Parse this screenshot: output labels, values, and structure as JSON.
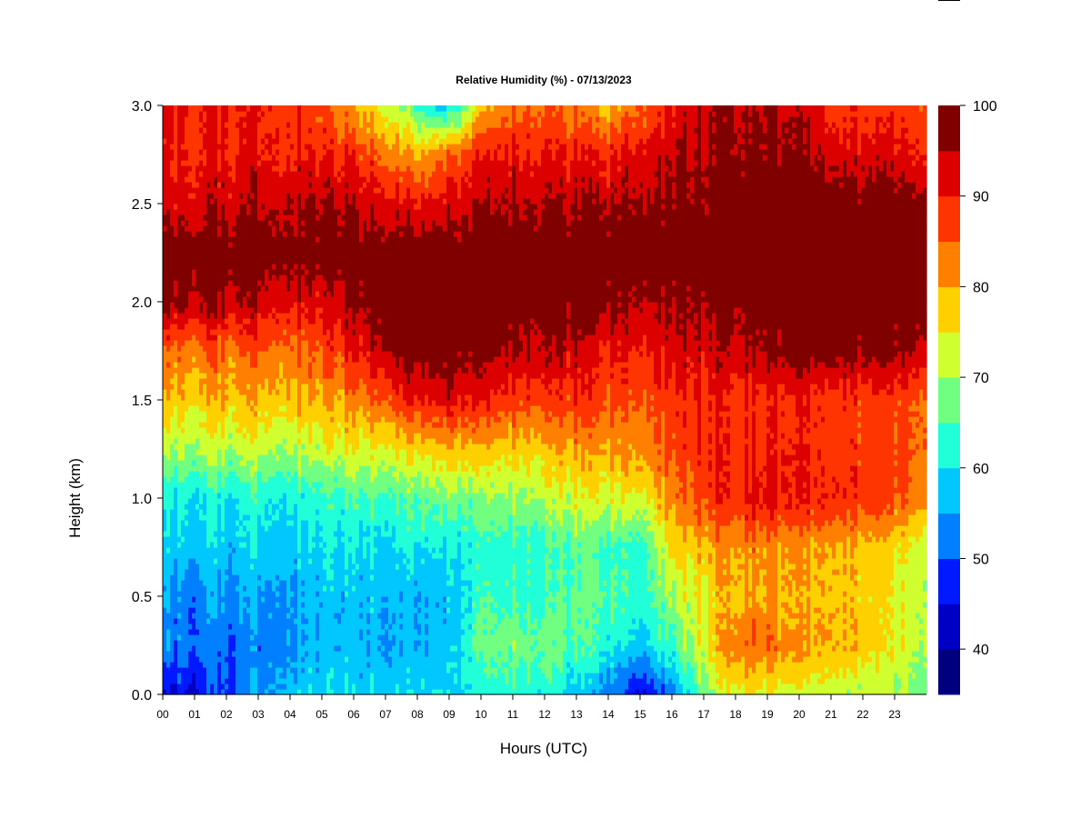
{
  "chart_data": {
    "type": "heatmap",
    "title": "Relative Humidity (%) - 07/13/2023",
    "xlabel": "Hours (UTC)",
    "ylabel": "Height (km)",
    "xlim": [
      0,
      24
    ],
    "ylim": [
      0,
      3
    ],
    "x_ticks": [
      "00",
      "01",
      "02",
      "03",
      "04",
      "05",
      "06",
      "07",
      "08",
      "09",
      "10",
      "11",
      "12",
      "13",
      "14",
      "15",
      "16",
      "17",
      "18",
      "19",
      "20",
      "21",
      "22",
      "23"
    ],
    "y_ticks": [
      "0.0",
      "0.5",
      "1.0",
      "1.5",
      "2.0",
      "2.5",
      "3.0"
    ],
    "colorbar": {
      "range": [
        35,
        100
      ],
      "ticks": [
        "40",
        "50",
        "60",
        "70",
        "80",
        "90",
        "100"
      ],
      "levels": [
        {
          "min": 35,
          "max": 40,
          "color": "#00007f"
        },
        {
          "min": 40,
          "max": 45,
          "color": "#0000c4"
        },
        {
          "min": 45,
          "max": 50,
          "color": "#0019ff"
        },
        {
          "min": 50,
          "max": 55,
          "color": "#0080ff"
        },
        {
          "min": 55,
          "max": 60,
          "color": "#00c8ff"
        },
        {
          "min": 60,
          "max": 65,
          "color": "#20ffd8"
        },
        {
          "min": 65,
          "max": 70,
          "color": "#70ff80"
        },
        {
          "min": 70,
          "max": 75,
          "color": "#d0ff30"
        },
        {
          "min": 75,
          "max": 80,
          "color": "#ffd000"
        },
        {
          "min": 80,
          "max": 85,
          "color": "#ff8000"
        },
        {
          "min": 85,
          "max": 90,
          "color": "#ff3500"
        },
        {
          "min": 90,
          "max": 95,
          "color": "#dd0000"
        },
        {
          "min": 95,
          "max": 100,
          "color": "#800000"
        }
      ]
    },
    "height_levels_km": [
      0.0,
      0.25,
      0.5,
      0.75,
      1.0,
      1.25,
      1.5,
      1.75,
      2.0,
      2.25,
      2.5,
      2.75,
      3.0
    ],
    "hours": [
      0,
      1,
      2,
      3,
      4,
      5,
      6,
      7,
      8,
      9,
      10,
      11,
      12,
      13,
      14,
      15,
      16,
      17,
      18,
      19,
      20,
      21,
      22,
      23,
      24
    ],
    "rh_percent": [
      [
        44,
        53,
        54,
        58,
        60,
        70,
        78,
        84,
        96,
        99,
        92,
        90,
        91
      ],
      [
        46,
        52,
        53,
        58,
        61,
        71,
        78,
        84,
        97,
        99,
        93,
        90,
        90
      ],
      [
        49,
        52,
        54,
        58,
        61,
        71,
        79,
        84,
        95,
        99,
        94,
        90,
        90
      ],
      [
        55,
        52,
        55,
        59,
        62,
        72,
        79,
        85,
        94,
        99,
        95,
        91,
        90
      ],
      [
        58,
        56,
        56,
        59,
        62,
        72,
        80,
        85,
        93,
        99,
        96,
        91,
        89
      ],
      [
        59,
        57,
        57,
        60,
        63,
        73,
        80,
        86,
        92,
        99,
        96,
        90,
        86
      ],
      [
        59,
        57,
        57,
        60,
        64,
        74,
        82,
        90,
        96,
        99,
        95,
        88,
        80
      ],
      [
        59,
        56,
        57,
        60,
        65,
        75,
        86,
        96,
        99,
        99,
        93,
        84,
        74
      ],
      [
        59,
        56,
        56,
        60,
        66,
        77,
        90,
        99,
        99,
        99,
        91,
        80,
        64
      ],
      [
        59,
        57,
        57,
        61,
        68,
        79,
        92,
        99,
        99,
        99,
        92,
        84,
        58
      ],
      [
        62,
        66,
        64,
        62,
        68,
        78,
        90,
        97,
        99,
        99,
        95,
        90,
        78
      ],
      [
        63,
        68,
        64,
        63,
        70,
        78,
        88,
        96,
        99,
        99,
        96,
        91,
        84
      ],
      [
        63,
        68,
        65,
        64,
        72,
        79,
        88,
        96,
        99,
        99,
        96,
        91,
        86
      ],
      [
        57,
        65,
        66,
        65,
        73,
        80,
        88,
        93,
        99,
        99,
        95,
        90,
        82
      ],
      [
        52,
        62,
        65,
        64,
        73,
        80,
        86,
        90,
        97,
        99,
        95,
        89,
        78
      ],
      [
        44,
        58,
        63,
        63,
        74,
        82,
        86,
        90,
        95,
        99,
        96,
        92,
        84
      ],
      [
        52,
        64,
        70,
        76,
        82,
        86,
        88,
        92,
        96,
        99,
        97,
        94,
        91
      ],
      [
        68,
        74,
        76,
        79,
        88,
        89,
        90,
        93,
        98,
        99,
        98,
        96,
        95
      ],
      [
        76,
        84,
        80,
        82,
        90,
        89,
        89,
        94,
        98,
        99,
        99,
        97,
        96
      ],
      [
        74,
        85,
        81,
        82,
        92,
        90,
        89,
        96,
        99,
        99,
        99,
        97,
        96
      ],
      [
        72,
        80,
        78,
        80,
        90,
        89,
        89,
        97,
        99,
        99,
        99,
        96,
        93
      ],
      [
        72,
        80,
        79,
        80,
        90,
        88,
        88,
        98,
        99,
        99,
        99,
        93,
        88
      ],
      [
        72,
        79,
        78,
        79,
        89,
        88,
        88,
        98,
        99,
        99,
        99,
        93,
        88
      ],
      [
        70,
        74,
        74,
        76,
        86,
        87,
        87,
        97,
        99,
        99,
        99,
        92,
        88
      ],
      [
        68,
        72,
        72,
        74,
        84,
        86,
        86,
        96,
        99,
        99,
        99,
        91,
        88
      ]
    ],
    "grid": false,
    "legend": "right colorbar"
  }
}
